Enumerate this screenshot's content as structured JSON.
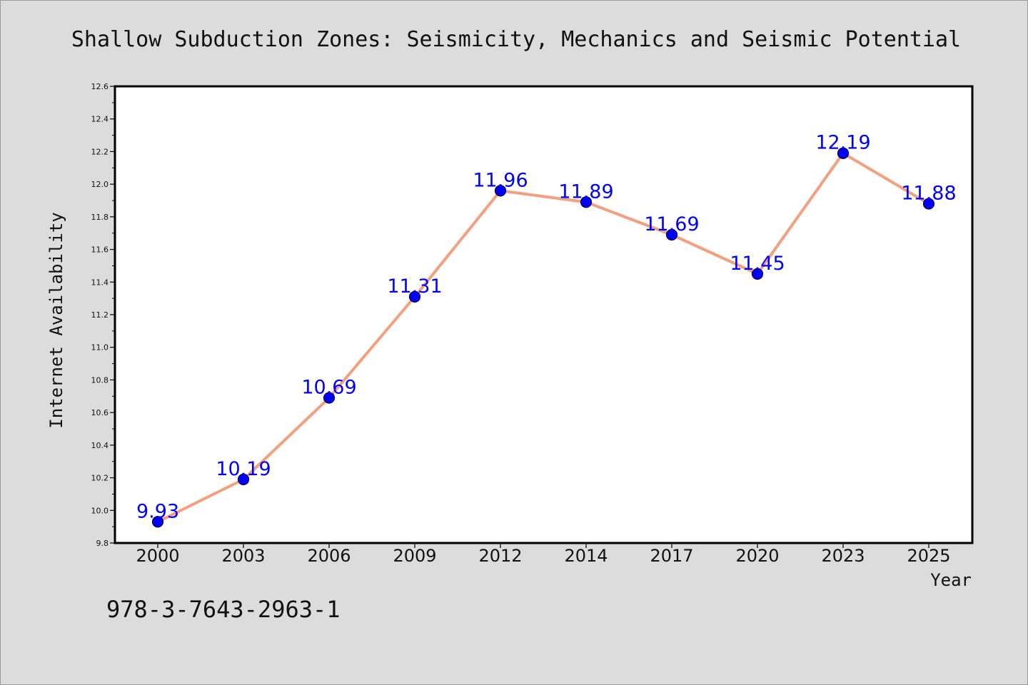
{
  "chart_data": {
    "type": "line",
    "title": "Shallow Subduction Zones: Seismicity, Mechanics and Seismic Potential",
    "xlabel": "Year",
    "ylabel": "Internet Availability",
    "categories": [
      "2000",
      "2003",
      "2006",
      "2009",
      "2012",
      "2014",
      "2017",
      "2020",
      "2023",
      "2025"
    ],
    "series": [
      {
        "values": [
          9.93,
          10.19,
          10.69,
          11.31,
          11.96,
          11.89,
          11.69,
          11.45,
          12.19,
          11.88
        ],
        "labels": [
          "9.93",
          "10.19",
          "10.69",
          "11.31",
          "11.96",
          "11.89",
          "11.69",
          "11.45",
          "12.19",
          "11.88"
        ]
      }
    ],
    "ylim": [
      9.8,
      12.6
    ],
    "yticks": [
      "9.8",
      "10.0",
      "10.2",
      "10.4",
      "10.6",
      "10.8",
      "11.0",
      "11.2",
      "11.4",
      "11.6",
      "11.8",
      "12.0",
      "12.2",
      "12.4",
      "12.6"
    ],
    "grid": false,
    "data_labels": true,
    "colors": {
      "line": "#f4a07e",
      "marker": "#0000ff",
      "marker_edge": "#000033",
      "data_label": "#0000ff",
      "plot_background": "#ffffff",
      "figure_background": "#dcdcdc"
    }
  },
  "footer": {
    "isbn": "978-3-7643-2963-1"
  }
}
